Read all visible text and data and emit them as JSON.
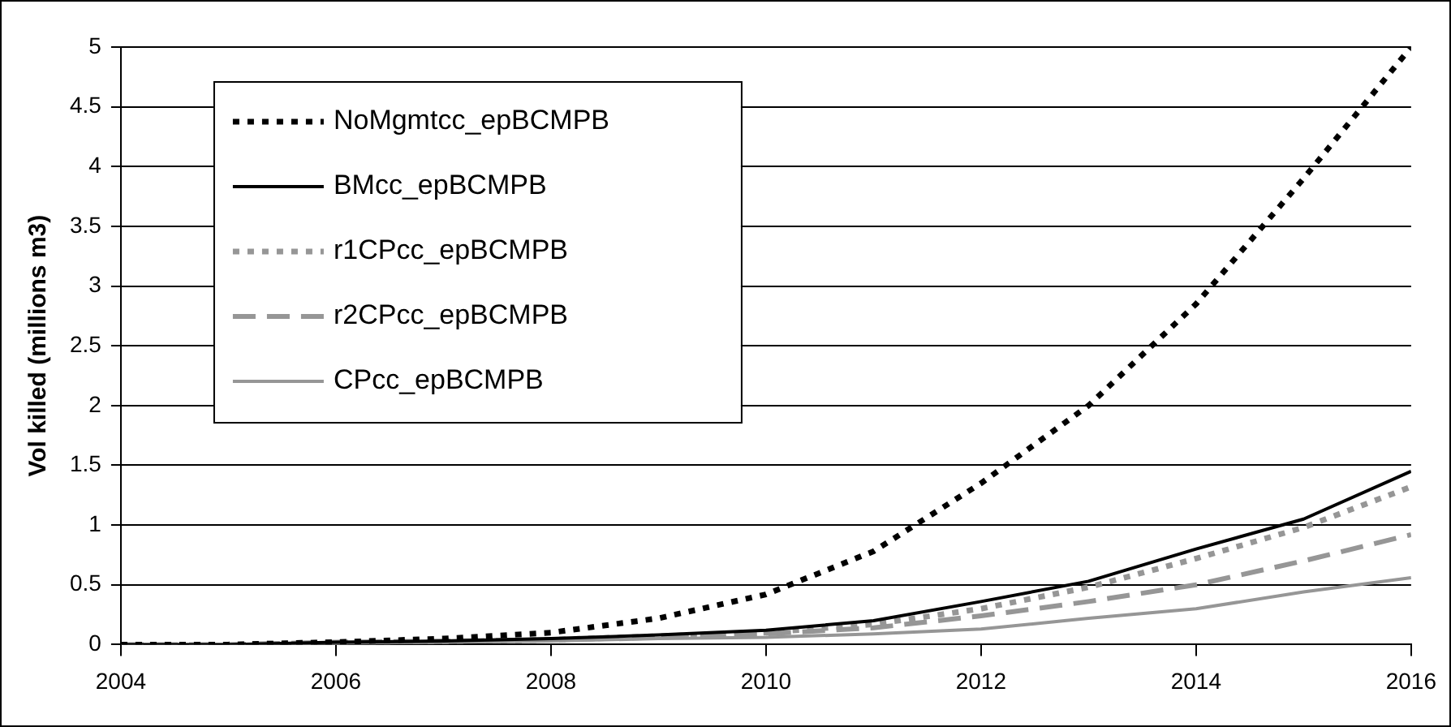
{
  "chart_data": {
    "type": "line",
    "ylabel": "Vol killed (millions m3)",
    "x": [
      2004,
      2005,
      2006,
      2007,
      2008,
      2009,
      2010,
      2011,
      2012,
      2013,
      2014,
      2015,
      2016
    ],
    "series": [
      {
        "name": "NoMgmtcc_epBCMPB",
        "color": "#000000",
        "line_style": "dotted",
        "values": [
          0,
          0,
          0.02,
          0.05,
          0.1,
          0.22,
          0.42,
          0.78,
          1.35,
          2.0,
          2.85,
          3.9,
          5.0
        ]
      },
      {
        "name": "BMcc_epBCMPB",
        "color": "#000000",
        "line_style": "solid",
        "values": [
          0,
          0,
          0.02,
          0.03,
          0.05,
          0.08,
          0.12,
          0.2,
          0.36,
          0.53,
          0.8,
          1.05,
          1.45
        ]
      },
      {
        "name": "r1CPcc_epBCMPB",
        "color": "#969696",
        "line_style": "dotted",
        "values": [
          0,
          0,
          0.02,
          0.03,
          0.04,
          0.07,
          0.1,
          0.17,
          0.3,
          0.48,
          0.72,
          0.98,
          1.32
        ]
      },
      {
        "name": "r2CPcc_epBCMPB",
        "color": "#969696",
        "line_style": "dashed",
        "values": [
          0,
          0,
          0.02,
          0.03,
          0.04,
          0.06,
          0.09,
          0.14,
          0.24,
          0.36,
          0.5,
          0.7,
          0.92
        ]
      },
      {
        "name": "CPcc_epBCMPB",
        "color": "#969696",
        "line_style": "solid",
        "values": [
          0,
          0,
          0.01,
          0.02,
          0.03,
          0.05,
          0.06,
          0.09,
          0.13,
          0.22,
          0.3,
          0.44,
          0.56
        ]
      }
    ],
    "xlim": [
      2004,
      2016
    ],
    "xticks": [
      2004,
      2006,
      2008,
      2010,
      2012,
      2014,
      2016
    ],
    "ylim": [
      0,
      5
    ],
    "yticks": [
      0,
      0.5,
      1,
      1.5,
      2,
      2.5,
      3,
      3.5,
      4,
      4.5,
      5
    ],
    "grid": "y",
    "legend": "top left",
    "marker": "none"
  }
}
